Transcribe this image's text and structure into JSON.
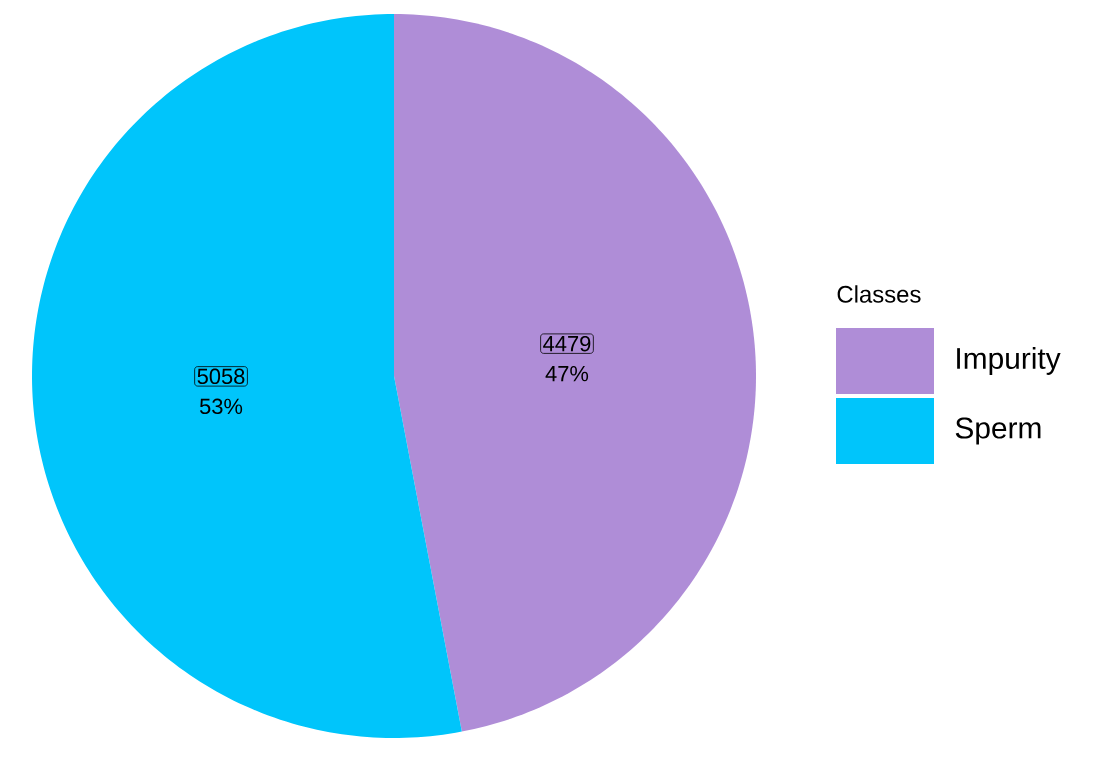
{
  "chart_data": {
    "type": "pie",
    "categories": [
      "Impurity",
      "Sperm"
    ],
    "values": [
      47,
      53
    ],
    "colors": [
      "#af8dd7",
      "#00c5fb"
    ],
    "value_labels": [
      "47%",
      "53%"
    ],
    "annotations": [
      {
        "text": "4479",
        "x": "Impurity"
      },
      {
        "text": "5058",
        "x": "Sperm"
      }
    ],
    "legend": "right",
    "legend_title": "Classes"
  }
}
